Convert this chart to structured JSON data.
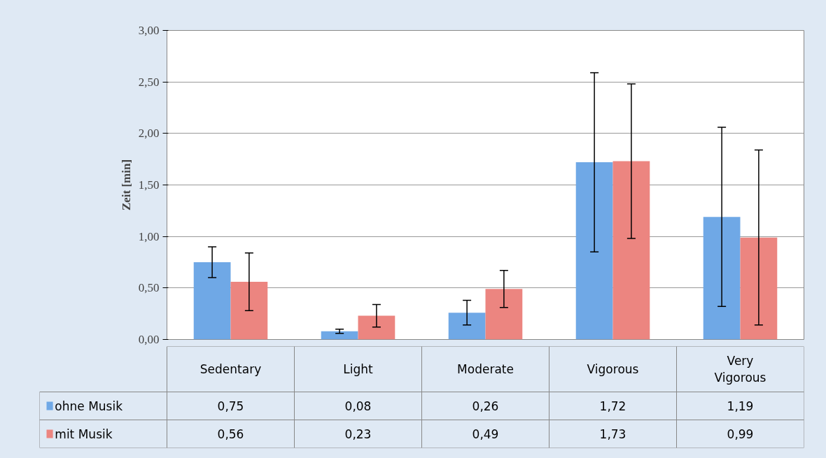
{
  "chart_data": {
    "type": "bar",
    "ylabel": "Zeit [min]",
    "categories": [
      "Sedentary",
      "Light",
      "Moderate",
      "Vigorous",
      "Very Vigorous"
    ],
    "series": [
      {
        "name": "ohne Musik",
        "color": "#6fa8e6",
        "values": [
          0.75,
          0.08,
          0.26,
          1.72,
          1.19
        ],
        "errors": [
          0.15,
          0.02,
          0.12,
          0.87,
          0.87
        ],
        "value_labels": [
          "0,75",
          "0,08",
          "0,26",
          "1,72",
          "1,19"
        ]
      },
      {
        "name": "mit Musik",
        "color": "#ec8580",
        "values": [
          0.56,
          0.23,
          0.49,
          1.73,
          0.99
        ],
        "errors": [
          0.28,
          0.11,
          0.18,
          0.75,
          0.85
        ],
        "value_labels": [
          "0,56",
          "0,23",
          "0,49",
          "1,73",
          "0,99"
        ]
      }
    ],
    "ylim": [
      0,
      3
    ],
    "yticks": [
      {
        "value": 0,
        "label": "0,00"
      },
      {
        "value": 0.5,
        "label": "0,50"
      },
      {
        "value": 1,
        "label": "1,00"
      },
      {
        "value": 1.5,
        "label": "1,50"
      },
      {
        "value": 2,
        "label": "2,00"
      },
      {
        "value": 2.5,
        "label": "2,50"
      },
      {
        "value": 3,
        "label": "3,00"
      }
    ],
    "grid": "y",
    "legend": "bottom left"
  }
}
